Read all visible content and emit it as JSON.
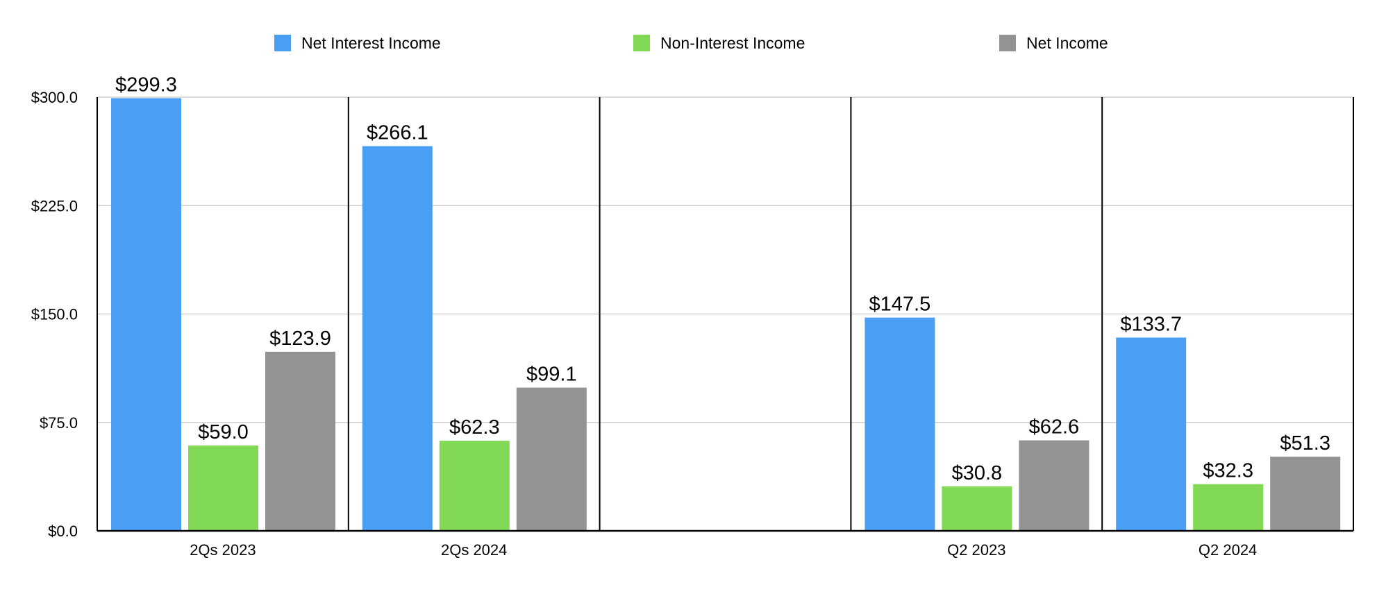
{
  "chart_data": {
    "type": "bar",
    "categories": [
      "2Qs 2023",
      "2Qs 2024",
      "",
      "Q2 2023",
      "Q2 2024"
    ],
    "series": [
      {
        "name": "Net Interest Income",
        "color": "#4a9ff5",
        "values": [
          299.3,
          266.1,
          null,
          147.5,
          133.7
        ],
        "labels": [
          "$299.3",
          "$266.1",
          "",
          "$147.5",
          "$133.7"
        ]
      },
      {
        "name": "Non-Interest Income",
        "color": "#82d955",
        "values": [
          59.0,
          62.3,
          null,
          30.8,
          32.3
        ],
        "labels": [
          "$59.0",
          "$62.3",
          "",
          "$30.8",
          "$32.3"
        ]
      },
      {
        "name": "Net Income",
        "color": "#939393",
        "values": [
          123.9,
          99.1,
          null,
          62.6,
          51.3
        ],
        "labels": [
          "$123.9",
          "$99.1",
          "",
          "$62.6",
          "$51.3"
        ]
      }
    ],
    "yticks": [
      {
        "value": 0,
        "label": "$0.0"
      },
      {
        "value": 75,
        "label": "$75.0"
      },
      {
        "value": 150,
        "label": "$150.0"
      },
      {
        "value": 225,
        "label": "$225.0"
      },
      {
        "value": 300,
        "label": "$300.0"
      }
    ],
    "ylim": [
      0,
      300
    ],
    "grid": true,
    "legend_position": "top"
  }
}
